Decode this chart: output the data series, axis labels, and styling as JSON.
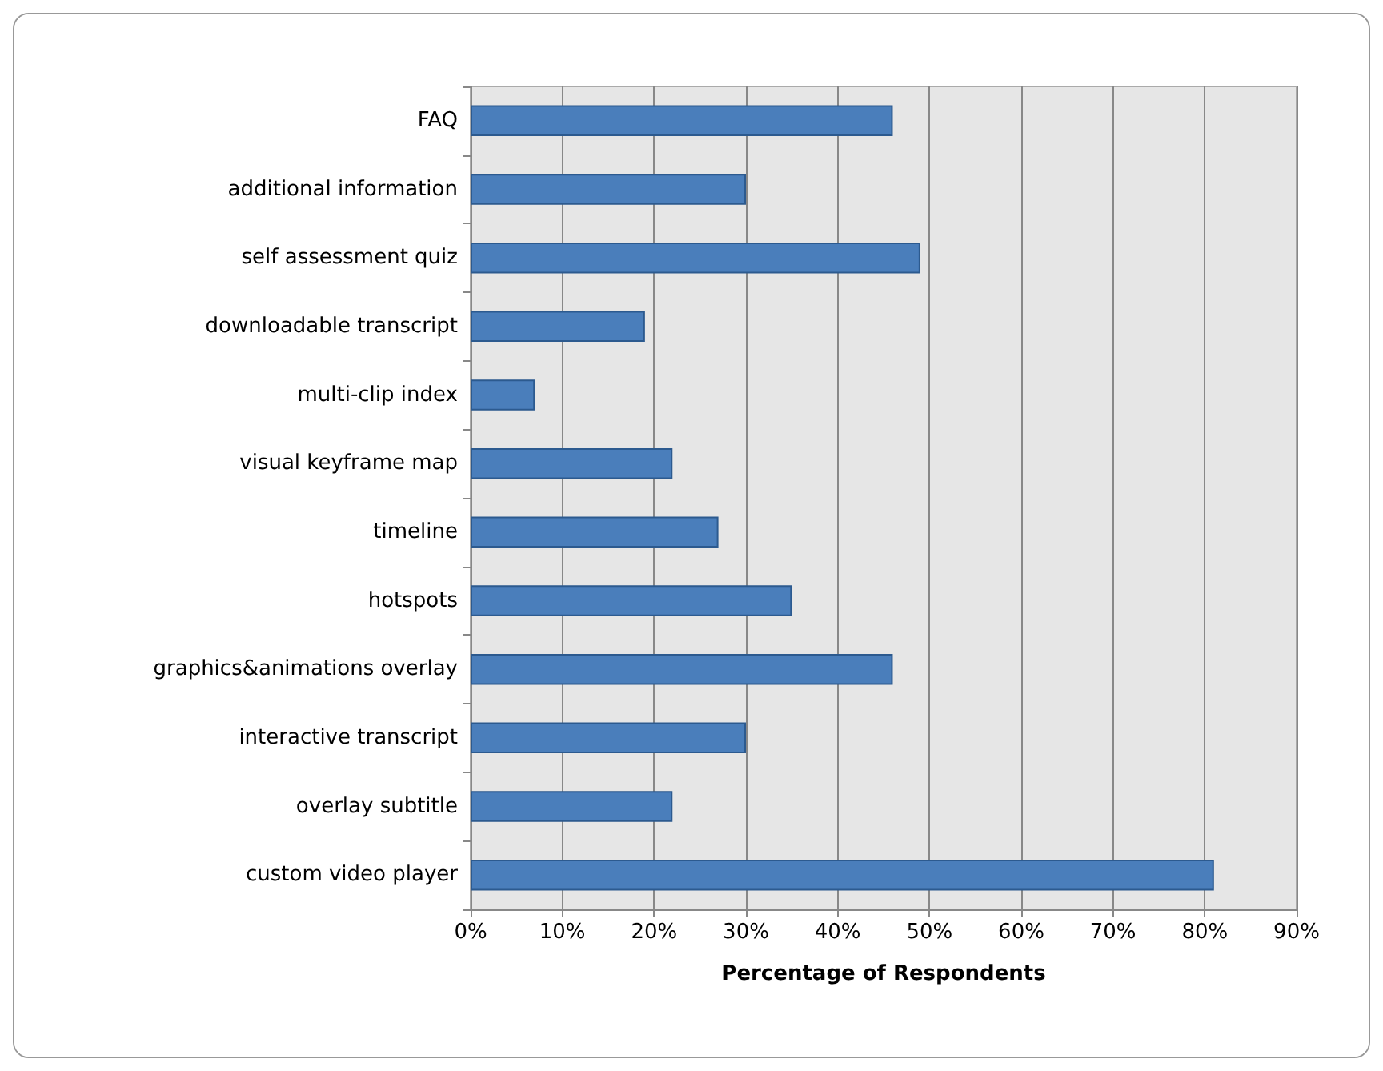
{
  "chart_data": {
    "type": "bar",
    "orientation": "horizontal",
    "xlabel": "Percentage of Respondents",
    "categories": [
      "FAQ",
      "additional information",
      "self assessment quiz",
      "downloadable transcript",
      "multi-clip index",
      "visual keyframe map",
      "timeline",
      "hotspots",
      "graphics&animations overlay",
      "interactive transcript",
      "overlay subtitle",
      "custom video player"
    ],
    "values": [
      46,
      30,
      49,
      19,
      7,
      22,
      27,
      35,
      46,
      30,
      22,
      81
    ],
    "color": "#4a7ebb",
    "xlim": [
      0,
      90
    ],
    "xticks": [
      {
        "value": 0,
        "label": "0%"
      },
      {
        "value": 10,
        "label": "10%"
      },
      {
        "value": 20,
        "label": "20%"
      },
      {
        "value": 30,
        "label": "30%"
      },
      {
        "value": 40,
        "label": "40%"
      },
      {
        "value": 50,
        "label": "50%"
      },
      {
        "value": 60,
        "label": "60%"
      },
      {
        "value": 70,
        "label": "70%"
      },
      {
        "value": 80,
        "label": "80%"
      },
      {
        "value": 90,
        "label": "90%"
      }
    ],
    "grid": "x"
  }
}
